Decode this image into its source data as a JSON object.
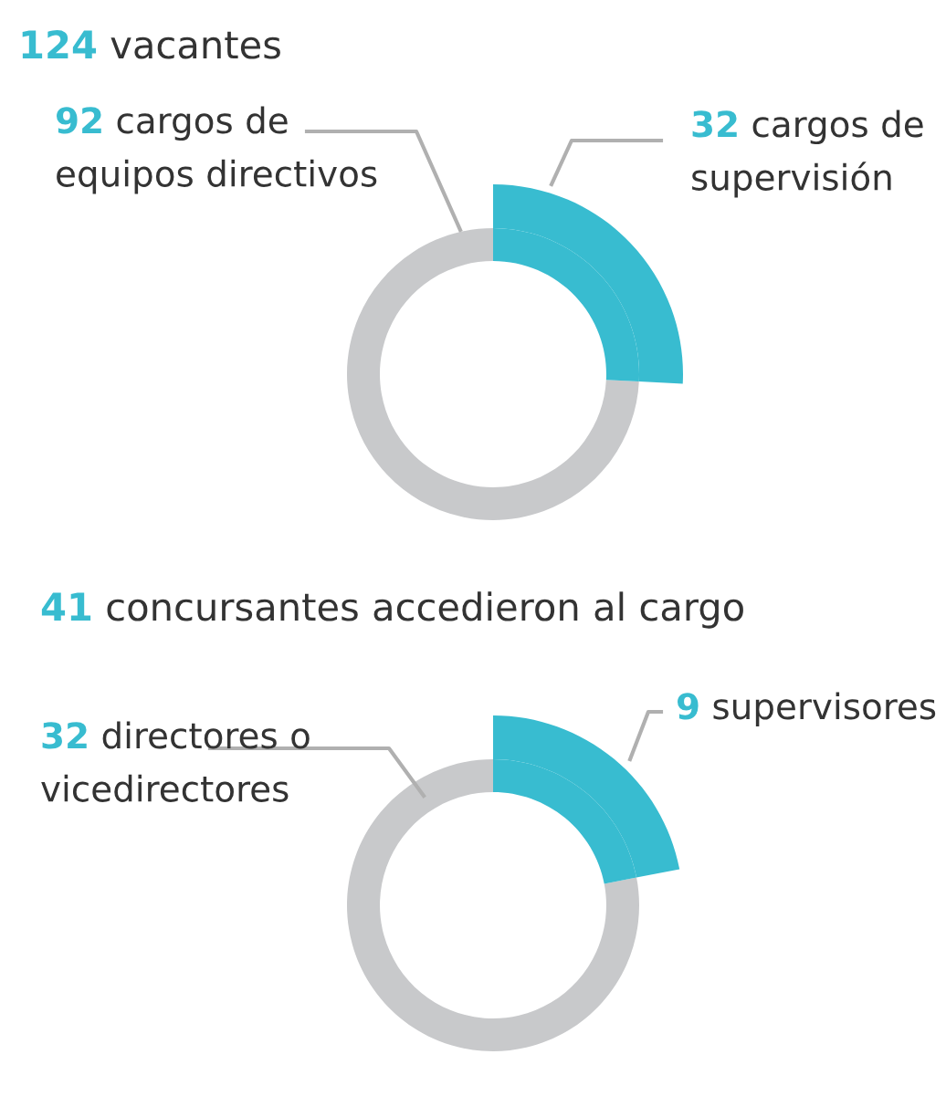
{
  "chart_data": [
    {
      "type": "donut",
      "title": "124 vacantes",
      "categories": [
        "cargos de equipos directivos",
        "cargos de supervisión"
      ],
      "values": [
        92,
        32
      ],
      "colors": [
        "#c8c9cb",
        "#38bcd0"
      ],
      "data_labels": true
    },
    {
      "type": "donut",
      "title": "41 concursantes accedieron al cargo",
      "categories": [
        "directores o vicedirectores",
        "supervisores"
      ],
      "values": [
        32,
        9
      ],
      "colors": [
        "#c8c9cb",
        "#38bcd0"
      ],
      "data_labels": true
    }
  ]
}
